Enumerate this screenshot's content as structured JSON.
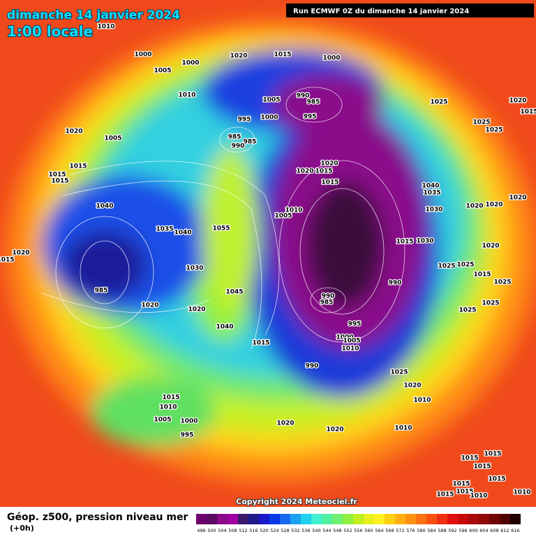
{
  "header": {
    "date": "dimanche 14 janvier 2024",
    "time": "1:00 locale",
    "run": "Run ECMWF 0Z du dimanche 14 janvier 2024"
  },
  "copyright": "Copyright 2024 Meteociel.fr",
  "footer": {
    "title": "Géop. z500, pression niveau mer",
    "lead": "(+0h)"
  },
  "colorbar": {
    "values": [
      496,
      500,
      504,
      508,
      512,
      516,
      520,
      524,
      528,
      532,
      536,
      540,
      544,
      548,
      552,
      556,
      560,
      564,
      568,
      572,
      576,
      580,
      584,
      588,
      592,
      596,
      600,
      604,
      608,
      612,
      616
    ],
    "colors": [
      "#6e006e",
      "#5a0a60",
      "#8a0a8a",
      "#a000a0",
      "#3a1a6a",
      "#201a8a",
      "#1a1ac8",
      "#0a3ae8",
      "#1a6af0",
      "#1aa0f0",
      "#20d0f0",
      "#40f0d0",
      "#50f0a0",
      "#70f070",
      "#90f040",
      "#c0f020",
      "#e8f020",
      "#fff020",
      "#ffd010",
      "#ffb010",
      "#ff9010",
      "#ff7010",
      "#ff5010",
      "#f03010",
      "#e01010",
      "#c80a0a",
      "#a80a0a",
      "#900808",
      "#700606",
      "#500404",
      "#200000"
    ]
  },
  "isobar_labels": [
    1010,
    1000,
    1005,
    1000,
    1020,
    1015,
    1000,
    1010,
    990,
    985,
    1005,
    995,
    1000,
    995,
    1025,
    1020,
    1015,
    1020,
    1005,
    985,
    985,
    990,
    1025,
    1025,
    1015,
    1015,
    1015,
    1020,
    1015,
    1020,
    1015,
    1040,
    1035,
    1040,
    1010,
    1005,
    1030,
    1020,
    1020,
    1020,
    1035,
    1040,
    1055,
    1015,
    1030,
    1020,
    1015,
    1020,
    1030,
    1025,
    1025,
    1015,
    1025,
    990,
    985,
    990,
    985,
    1020,
    1020,
    1045,
    1025,
    1025,
    995,
    1040,
    1000,
    1005,
    1010,
    1015,
    990,
    1025,
    1020,
    1010,
    1015,
    1010,
    1005,
    1000,
    995,
    1020,
    1020,
    1010,
    1015,
    1015,
    1015,
    1015,
    1015,
    1015,
    1010,
    1015,
    1010
  ]
}
